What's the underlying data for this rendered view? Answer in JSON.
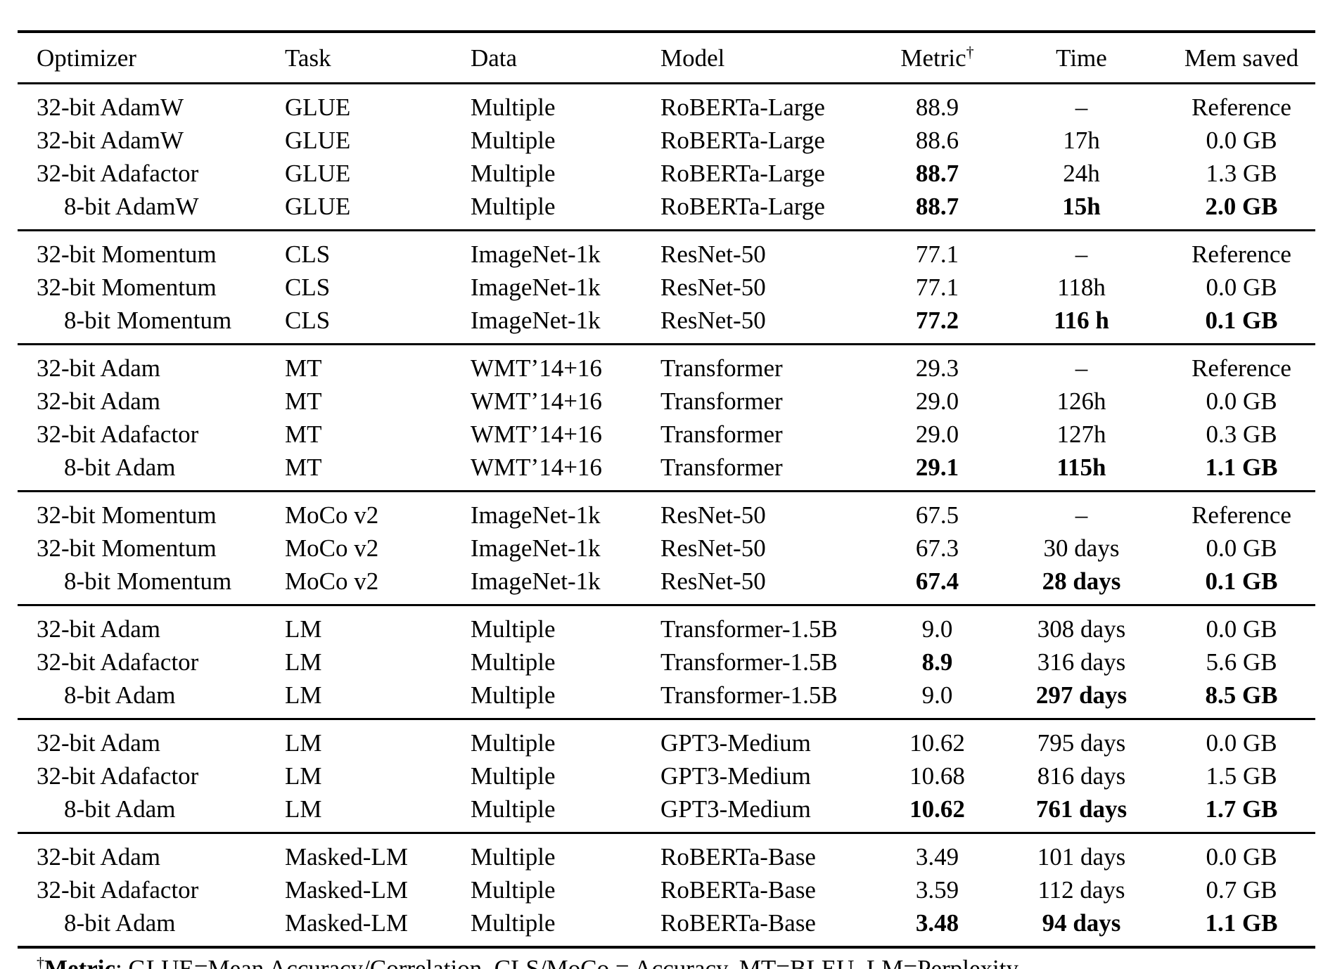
{
  "page": {
    "background": "#ffffff",
    "text_color": "#000000",
    "rule_color": "#000000"
  },
  "table": {
    "columns": [
      {
        "label": "Optimizer"
      },
      {
        "label": "Task"
      },
      {
        "label": "Data"
      },
      {
        "label": "Model"
      },
      {
        "label": "Metric"
      },
      {
        "label": "Time"
      },
      {
        "label": "Mem saved"
      }
    ],
    "metric_superscript": "†",
    "sections": [
      {
        "name": "glue",
        "rows": [
          {
            "optimizer": "32-bit AdamW",
            "task": "GLUE",
            "data": "Multiple",
            "model": "RoBERTa-Large",
            "metric": "88.9",
            "time": "–",
            "mem_saved": "Reference",
            "bold": []
          },
          {
            "optimizer": "32-bit AdamW",
            "task": "GLUE",
            "data": "Multiple",
            "model": "RoBERTa-Large",
            "metric": "88.6",
            "time": "17h",
            "mem_saved": "0.0 GB",
            "bold": []
          },
          {
            "optimizer": "32-bit Adafactor",
            "task": "GLUE",
            "data": "Multiple",
            "model": "RoBERTa-Large",
            "metric": "88.7",
            "time": "24h",
            "mem_saved": "1.3 GB",
            "bold": [
              "metric"
            ]
          },
          {
            "optimizer": "8-bit AdamW",
            "task": "GLUE",
            "data": "Multiple",
            "model": "RoBERTa-Large",
            "metric": "88.7",
            "time": "15h",
            "mem_saved": "2.0 GB",
            "bold": [
              "metric",
              "time",
              "mem_saved"
            ]
          }
        ]
      },
      {
        "name": "cls",
        "rows": [
          {
            "optimizer": "32-bit Momentum",
            "task": "CLS",
            "data": "ImageNet-1k",
            "model": "ResNet-50",
            "metric": "77.1",
            "time": "–",
            "mem_saved": "Reference",
            "bold": []
          },
          {
            "optimizer": "32-bit Momentum",
            "task": "CLS",
            "data": "ImageNet-1k",
            "model": "ResNet-50",
            "metric": "77.1",
            "time": "118h",
            "mem_saved": "0.0 GB",
            "bold": []
          },
          {
            "optimizer": "8-bit Momentum",
            "task": "CLS",
            "data": "ImageNet-1k",
            "model": "ResNet-50",
            "metric": "77.2",
            "time": "116 h",
            "mem_saved": "0.1 GB",
            "bold": [
              "metric",
              "time",
              "mem_saved"
            ]
          }
        ]
      },
      {
        "name": "mt",
        "rows": [
          {
            "optimizer": "32-bit Adam",
            "task": "MT",
            "data": "WMT’14+16",
            "model": "Transformer",
            "metric": "29.3",
            "time": "–",
            "mem_saved": "Reference",
            "bold": []
          },
          {
            "optimizer": "32-bit Adam",
            "task": "MT",
            "data": "WMT’14+16",
            "model": "Transformer",
            "metric": "29.0",
            "time": "126h",
            "mem_saved": "0.0 GB",
            "bold": []
          },
          {
            "optimizer": "32-bit Adafactor",
            "task": "MT",
            "data": "WMT’14+16",
            "model": "Transformer",
            "metric": "29.0",
            "time": "127h",
            "mem_saved": "0.3 GB",
            "bold": []
          },
          {
            "optimizer": "8-bit Adam",
            "task": "MT",
            "data": "WMT’14+16",
            "model": "Transformer",
            "metric": "29.1",
            "time": "115h",
            "mem_saved": "1.1 GB",
            "bold": [
              "metric",
              "time",
              "mem_saved"
            ]
          }
        ]
      },
      {
        "name": "moco-v2",
        "rows": [
          {
            "optimizer": "32-bit Momentum",
            "task": "MoCo v2",
            "data": "ImageNet-1k",
            "model": "ResNet-50",
            "metric": "67.5",
            "time": "–",
            "mem_saved": "Reference",
            "bold": []
          },
          {
            "optimizer": "32-bit Momentum",
            "task": "MoCo v2",
            "data": "ImageNet-1k",
            "model": "ResNet-50",
            "metric": "67.3",
            "time": "30 days",
            "mem_saved": "0.0 GB",
            "bold": []
          },
          {
            "optimizer": "8-bit Momentum",
            "task": "MoCo v2",
            "data": "ImageNet-1k",
            "model": "ResNet-50",
            "metric": "67.4",
            "time": "28 days",
            "mem_saved": "0.1 GB",
            "bold": [
              "metric",
              "time",
              "mem_saved"
            ]
          }
        ]
      },
      {
        "name": "lm-1-5b",
        "rows": [
          {
            "optimizer": "32-bit Adam",
            "task": "LM",
            "data": "Multiple",
            "model": "Transformer-1.5B",
            "metric": "9.0",
            "time": "308 days",
            "mem_saved": "0.0 GB",
            "bold": []
          },
          {
            "optimizer": "32-bit Adafactor",
            "task": "LM",
            "data": "Multiple",
            "model": "Transformer-1.5B",
            "metric": "8.9",
            "time": "316 days",
            "mem_saved": "5.6 GB",
            "bold": [
              "metric"
            ]
          },
          {
            "optimizer": "8-bit Adam",
            "task": "LM",
            "data": "Multiple",
            "model": "Transformer-1.5B",
            "metric": "9.0",
            "time": "297 days",
            "mem_saved": "8.5 GB",
            "bold": [
              "time",
              "mem_saved"
            ]
          }
        ]
      },
      {
        "name": "gpt3-medium",
        "rows": [
          {
            "optimizer": "32-bit Adam",
            "task": "LM",
            "data": "Multiple",
            "model": "GPT3-Medium",
            "metric": "10.62",
            "time": "795 days",
            "mem_saved": "0.0 GB",
            "bold": []
          },
          {
            "optimizer": "32-bit Adafactor",
            "task": "LM",
            "data": "Multiple",
            "model": "GPT3-Medium",
            "metric": "10.68",
            "time": "816 days",
            "mem_saved": "1.5 GB",
            "bold": []
          },
          {
            "optimizer": "8-bit Adam",
            "task": "LM",
            "data": "Multiple",
            "model": "GPT3-Medium",
            "metric": "10.62",
            "time": "761 days",
            "mem_saved": "1.7 GB",
            "bold": [
              "metric",
              "time",
              "mem_saved"
            ]
          }
        ]
      },
      {
        "name": "masked-lm",
        "rows": [
          {
            "optimizer": "32-bit Adam",
            "task": "Masked-LM",
            "data": "Multiple",
            "model": "RoBERTa-Base",
            "metric": "3.49",
            "time": "101 days",
            "mem_saved": "0.0 GB",
            "bold": []
          },
          {
            "optimizer": "32-bit Adafactor",
            "task": "Masked-LM",
            "data": "Multiple",
            "model": "RoBERTa-Base",
            "metric": "3.59",
            "time": "112 days",
            "mem_saved": "0.7 GB",
            "bold": []
          },
          {
            "optimizer": "8-bit Adam",
            "task": "Masked-LM",
            "data": "Multiple",
            "model": "RoBERTa-Base",
            "metric": "3.48",
            "time": "94 days",
            "mem_saved": "1.1 GB",
            "bold": [
              "metric",
              "time",
              "mem_saved"
            ]
          }
        ]
      }
    ],
    "footnote": {
      "marker": "†",
      "bold_label": "Metric",
      "text": ": GLUE=Mean Accuracy/Correlation. CLS/MoCo = Accuracy. MT=BLEU. LM=Perplexity."
    }
  }
}
